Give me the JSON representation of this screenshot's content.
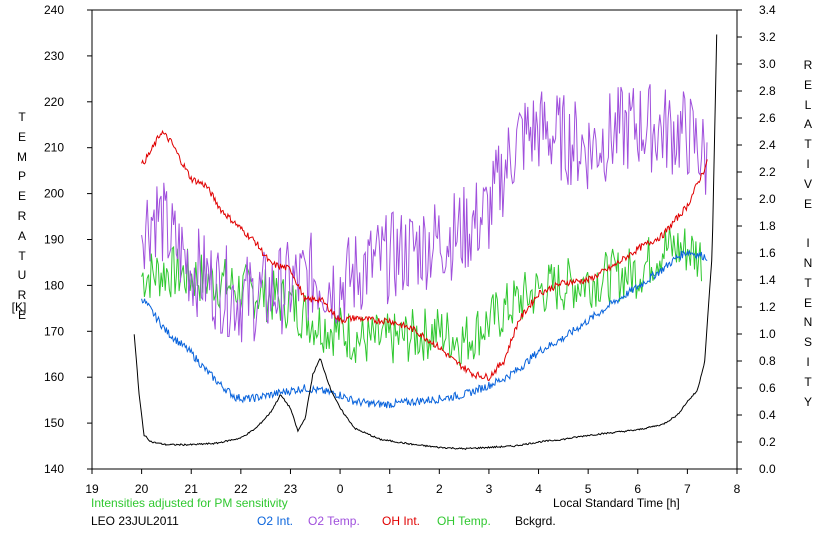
{
  "chart_data": {
    "type": "line",
    "left_axis": {
      "label_letters": [
        "T",
        "E",
        "M",
        "P",
        "E",
        "R",
        "A",
        "T",
        "U",
        "R",
        "E"
      ],
      "unit": "[K]",
      "range": [
        140,
        240
      ],
      "ticks": [
        "140",
        "150",
        "160",
        "170",
        "180",
        "190",
        "200",
        "210",
        "220",
        "230",
        "240"
      ]
    },
    "right_axis": {
      "label_word1": [
        "R",
        "E",
        "L",
        "A",
        "T",
        "I",
        "V",
        "E"
      ],
      "label_word2": [
        "I",
        "N",
        "T",
        "E",
        "N",
        "S",
        "I",
        "T",
        "Y"
      ],
      "range": [
        0.0,
        3.4
      ],
      "ticks": [
        "0.0",
        "0.2",
        "0.4",
        "0.6",
        "0.8",
        "1.0",
        "1.2",
        "1.4",
        "1.6",
        "1.8",
        "2.0",
        "2.2",
        "2.4",
        "2.6",
        "2.8",
        "3.0",
        "3.2",
        "3.4"
      ]
    },
    "x_axis": {
      "label": "Local Standard Time [h]",
      "ticks": [
        "19",
        "20",
        "21",
        "22",
        "23",
        "0",
        "1",
        "2",
        "3",
        "4",
        "5",
        "6",
        "7",
        "8"
      ]
    },
    "note": "Intensities adjusted for PM sensitivity",
    "station": "LEO 23JUL2011",
    "series": [
      {
        "name": "O2 Int.",
        "axis": "right",
        "color": "#0a64dc",
        "noise": 0.03,
        "x": [
          20.0,
          20.2,
          20.5,
          21.0,
          21.3,
          21.6,
          21.9,
          22.2,
          22.6,
          23.0,
          23.3,
          23.6,
          24.0,
          24.3,
          24.7,
          25.0,
          25.5,
          26.0,
          26.5,
          27.0,
          27.3,
          27.6,
          28.0,
          28.5,
          29.0,
          29.5,
          30.0,
          30.5,
          30.8,
          31.0,
          31.2,
          31.4
        ],
        "values": [
          1.27,
          1.17,
          1.02,
          0.86,
          0.73,
          0.62,
          0.53,
          0.52,
          0.55,
          0.58,
          0.6,
          0.58,
          0.55,
          0.5,
          0.48,
          0.48,
          0.5,
          0.52,
          0.55,
          0.62,
          0.67,
          0.74,
          0.87,
          0.97,
          1.1,
          1.23,
          1.35,
          1.48,
          1.57,
          1.61,
          1.59,
          1.57
        ]
      },
      {
        "name": "O2 Temp.",
        "axis": "left",
        "color": "#a050dc",
        "noise": 10,
        "x": [
          20.0,
          20.3,
          20.6,
          21.0,
          21.5,
          22.0,
          22.5,
          23.0,
          23.5,
          24.0,
          24.5,
          25.0,
          25.5,
          26.0,
          26.5,
          27.0,
          27.3,
          27.6,
          28.0,
          28.5,
          29.0,
          29.5,
          30.0,
          30.5,
          31.0,
          31.3,
          31.4
        ],
        "values": [
          193,
          196,
          190,
          184,
          180,
          177,
          178,
          180,
          182,
          180,
          184,
          186,
          188,
          190,
          192,
          196,
          205,
          212,
          214,
          212,
          210,
          213,
          215,
          214,
          213,
          209,
          206
        ]
      },
      {
        "name": "OH Int.",
        "axis": "right",
        "color": "#e00000",
        "noise": 0.025,
        "x": [
          20.0,
          20.2,
          20.4,
          20.6,
          20.8,
          21.0,
          21.3,
          21.6,
          21.8,
          22.0,
          22.3,
          22.6,
          23.0,
          23.3,
          23.6,
          24.0,
          24.3,
          24.7,
          25.0,
          25.5,
          26.0,
          26.3,
          26.7,
          27.0,
          27.3,
          27.6,
          28.0,
          28.5,
          29.0,
          29.5,
          30.0,
          30.5,
          31.0,
          31.4
        ],
        "values": [
          2.25,
          2.36,
          2.5,
          2.42,
          2.28,
          2.15,
          2.1,
          1.92,
          1.85,
          1.78,
          1.68,
          1.52,
          1.48,
          1.25,
          1.26,
          1.1,
          1.12,
          1.1,
          1.1,
          1.03,
          0.9,
          0.8,
          0.7,
          0.68,
          0.8,
          1.1,
          1.3,
          1.38,
          1.4,
          1.5,
          1.63,
          1.73,
          1.95,
          2.27
        ]
      },
      {
        "name": "OH Temp.",
        "axis": "left",
        "color": "#30c830",
        "noise": 6,
        "x": [
          20.0,
          20.5,
          21.0,
          21.5,
          22.0,
          22.5,
          23.0,
          23.5,
          24.0,
          24.5,
          25.0,
          25.5,
          26.0,
          26.5,
          27.0,
          27.5,
          28.0,
          28.5,
          29.0,
          29.5,
          30.0,
          30.5,
          31.0,
          31.3
        ],
        "values": [
          182,
          183,
          182,
          181,
          179,
          178,
          176,
          172,
          170,
          168,
          168,
          169,
          170,
          168,
          172,
          176,
          179,
          180,
          181,
          182,
          183,
          188,
          188,
          186
        ]
      },
      {
        "name": "Bckgrd.",
        "axis": "right",
        "color": "#000000",
        "noise": 0.006,
        "x": [
          19.85,
          19.95,
          20.05,
          20.2,
          20.5,
          21.0,
          21.5,
          22.0,
          22.3,
          22.6,
          22.8,
          23.0,
          23.15,
          23.3,
          23.45,
          23.6,
          23.8,
          24.0,
          24.3,
          24.8,
          25.5,
          26.0,
          26.5,
          27.0,
          27.5,
          28.0,
          28.5,
          29.0,
          29.5,
          30.0,
          30.5,
          30.8,
          31.0,
          31.2,
          31.35,
          31.5,
          31.6
        ],
        "values": [
          1.0,
          0.55,
          0.25,
          0.2,
          0.18,
          0.18,
          0.19,
          0.23,
          0.3,
          0.42,
          0.55,
          0.45,
          0.28,
          0.38,
          0.7,
          0.82,
          0.6,
          0.45,
          0.3,
          0.22,
          0.18,
          0.16,
          0.15,
          0.16,
          0.17,
          0.2,
          0.22,
          0.25,
          0.27,
          0.29,
          0.33,
          0.4,
          0.5,
          0.58,
          0.8,
          1.6,
          3.4
        ]
      }
    ]
  }
}
